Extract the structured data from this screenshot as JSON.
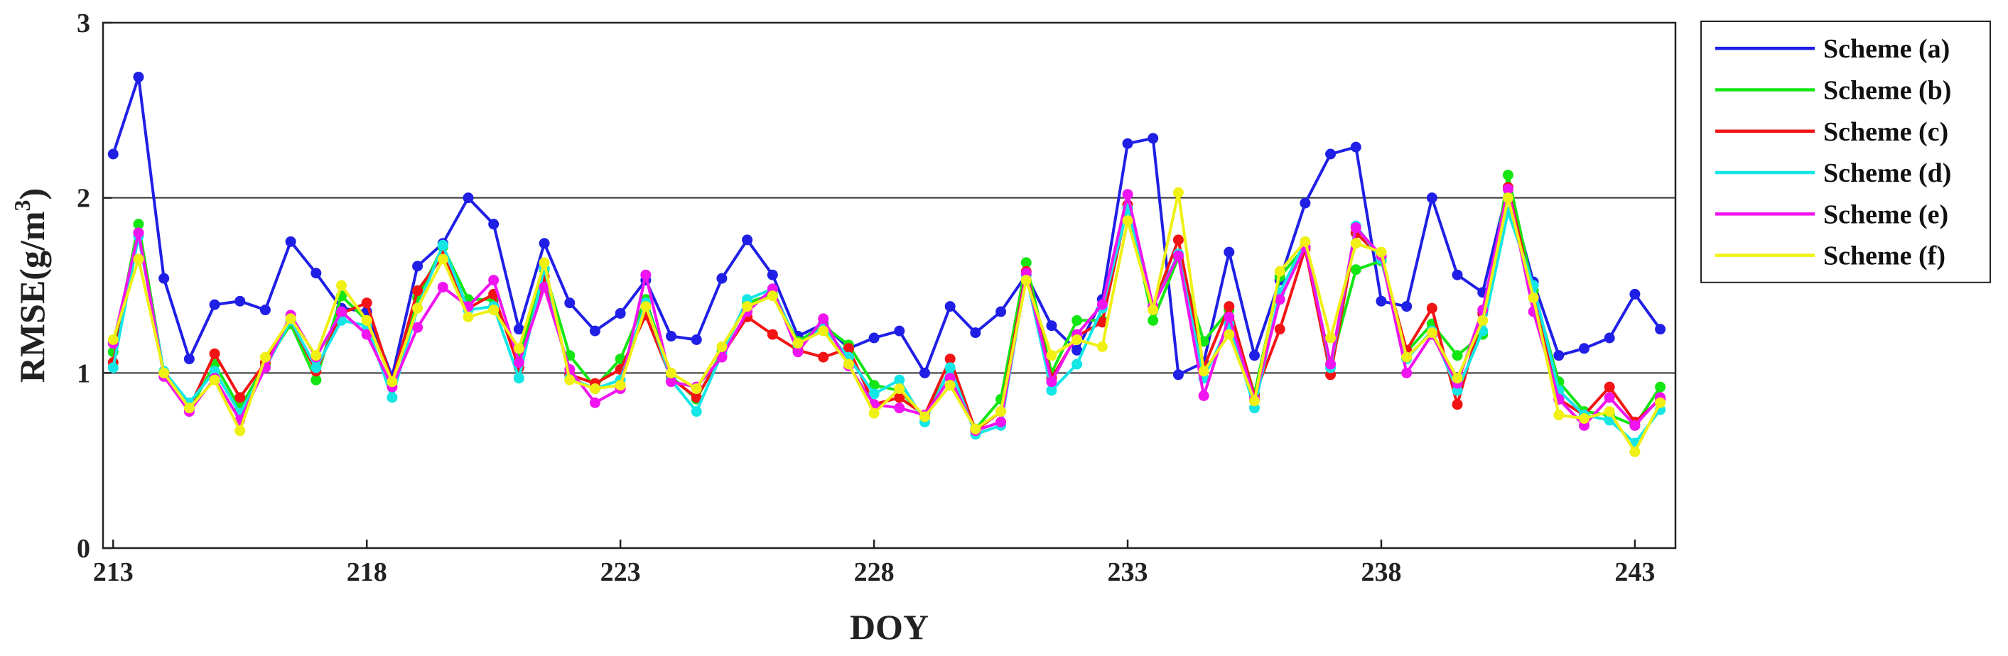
{
  "chart_data": {
    "type": "line",
    "xlabel": "DOY",
    "ylabel_prefix": "RMSE(g/m",
    "ylabel_sup": "3",
    "ylabel_suffix": ")",
    "xlim": [
      212.8,
      243.8
    ],
    "ylim": [
      0,
      3
    ],
    "xticks": [
      213,
      218,
      223,
      228,
      233,
      238,
      243
    ],
    "xtick_labels": [
      "213",
      "218",
      "223",
      "228",
      "233",
      "238",
      "243"
    ],
    "yticks": [
      0,
      1,
      2,
      3
    ],
    "ytick_labels": [
      "0",
      "1",
      "2",
      "3"
    ],
    "ygrid": [
      1,
      2
    ],
    "legend_position": "top-right, outside plot",
    "x": [
      213.0,
      213.5,
      214.0,
      214.5,
      215.0,
      215.5,
      216.0,
      216.5,
      217.0,
      217.5,
      218.0,
      218.5,
      219.0,
      219.5,
      220.0,
      220.5,
      221.0,
      221.5,
      222.0,
      222.5,
      223.0,
      223.5,
      224.0,
      224.5,
      225.0,
      225.5,
      226.0,
      226.5,
      227.0,
      227.5,
      228.0,
      228.5,
      229.0,
      229.5,
      230.0,
      230.5,
      231.0,
      231.5,
      232.0,
      232.5,
      233.0,
      233.5,
      234.0,
      234.5,
      235.0,
      235.5,
      236.0,
      236.5,
      237.0,
      237.5,
      238.0,
      238.5,
      239.0,
      239.5,
      240.0,
      240.5,
      241.0,
      241.5,
      242.0,
      242.5,
      243.0,
      243.5
    ],
    "series": [
      {
        "name": "Scheme (a)",
        "color": "#1f1fe6",
        "values": [
          2.25,
          2.69,
          1.54,
          1.08,
          1.39,
          1.41,
          1.36,
          1.75,
          1.57,
          1.37,
          1.35,
          0.98,
          1.61,
          1.74,
          2.0,
          1.85,
          1.25,
          1.74,
          1.4,
          1.24,
          1.34,
          1.53,
          1.21,
          1.19,
          1.54,
          1.76,
          1.56,
          1.21,
          1.28,
          1.14,
          1.2,
          1.24,
          1.0,
          1.38,
          1.23,
          1.35,
          1.56,
          1.27,
          1.13,
          1.42,
          2.31,
          2.34,
          0.99,
          1.06,
          1.69,
          1.1,
          1.53,
          1.97,
          2.25,
          2.29,
          1.41,
          1.38,
          2.0,
          1.56,
          1.46,
          2.06,
          1.52,
          1.1,
          1.14,
          1.2,
          1.45,
          1.25
        ]
      },
      {
        "name": "Scheme (b)",
        "color": "#14e614",
        "values": [
          1.12,
          1.85,
          1.0,
          0.79,
          1.05,
          0.8,
          1.05,
          1.28,
          0.96,
          1.44,
          1.3,
          0.95,
          1.43,
          1.72,
          1.42,
          1.42,
          1.08,
          1.59,
          1.1,
          0.92,
          1.08,
          1.42,
          0.98,
          0.85,
          1.12,
          1.4,
          1.45,
          1.18,
          1.27,
          1.16,
          0.93,
          0.9,
          0.75,
          1.02,
          0.68,
          0.85,
          1.63,
          1.0,
          1.3,
          1.3,
          1.96,
          1.3,
          1.66,
          1.18,
          1.36,
          0.88,
          1.55,
          1.72,
          1.05,
          1.59,
          1.64,
          1.12,
          1.28,
          1.1,
          1.22,
          2.13,
          1.47,
          0.95,
          0.78,
          0.76,
          0.7,
          0.92
        ]
      },
      {
        "name": "Scheme (c)",
        "color": "#f21414",
        "values": [
          1.06,
          1.8,
          1.0,
          0.8,
          1.11,
          0.86,
          1.06,
          1.3,
          1.01,
          1.34,
          1.4,
          0.95,
          1.47,
          1.67,
          1.37,
          1.45,
          1.03,
          1.55,
          0.99,
          0.94,
          1.02,
          1.33,
          0.97,
          0.86,
          1.1,
          1.32,
          1.22,
          1.13,
          1.09,
          1.14,
          0.82,
          0.86,
          0.76,
          1.08,
          0.67,
          0.78,
          1.58,
          0.97,
          1.21,
          1.29,
          1.96,
          1.38,
          1.76,
          1.03,
          1.38,
          0.87,
          1.25,
          1.71,
          0.99,
          1.8,
          1.66,
          1.13,
          1.37,
          0.82,
          1.34,
          2.06,
          1.43,
          0.85,
          0.76,
          0.92,
          0.72,
          0.85
        ]
      },
      {
        "name": "Scheme (d)",
        "color": "#14e6e6",
        "values": [
          1.03,
          1.78,
          1.01,
          0.83,
          1.01,
          0.77,
          1.03,
          1.3,
          1.03,
          1.3,
          1.27,
          0.86,
          1.37,
          1.73,
          1.36,
          1.38,
          0.97,
          1.6,
          0.97,
          0.91,
          0.96,
          1.4,
          0.96,
          0.78,
          1.11,
          1.42,
          1.48,
          1.16,
          1.26,
          1.09,
          0.88,
          0.96,
          0.72,
          1.03,
          0.65,
          0.7,
          1.56,
          0.9,
          1.05,
          1.37,
          1.94,
          1.38,
          1.68,
          0.97,
          1.28,
          0.8,
          1.46,
          1.75,
          1.03,
          1.84,
          1.65,
          1.08,
          1.24,
          0.9,
          1.24,
          1.92,
          1.5,
          0.9,
          0.76,
          0.73,
          0.6,
          0.79
        ]
      },
      {
        "name": "Scheme (e)",
        "color": "#f014f0",
        "values": [
          1.17,
          1.8,
          0.98,
          0.78,
          0.97,
          0.73,
          1.03,
          1.33,
          1.09,
          1.35,
          1.22,
          0.92,
          1.26,
          1.49,
          1.38,
          1.53,
          1.06,
          1.49,
          1.02,
          0.83,
          0.91,
          1.56,
          0.95,
          0.92,
          1.09,
          1.35,
          1.48,
          1.12,
          1.31,
          1.04,
          0.82,
          0.8,
          0.76,
          0.97,
          0.67,
          0.72,
          1.57,
          0.95,
          1.22,
          1.39,
          2.02,
          1.38,
          1.67,
          0.87,
          1.32,
          0.85,
          1.42,
          1.72,
          1.05,
          1.83,
          1.67,
          1.0,
          1.22,
          0.94,
          1.36,
          2.05,
          1.35,
          0.85,
          0.7,
          0.86,
          0.7,
          0.86
        ]
      },
      {
        "name": "Scheme (f)",
        "color": "#f0f014",
        "values": [
          1.19,
          1.65,
          1.0,
          0.8,
          0.96,
          0.67,
          1.09,
          1.31,
          1.1,
          1.5,
          1.3,
          0.95,
          1.37,
          1.65,
          1.32,
          1.36,
          1.14,
          1.63,
          0.96,
          0.91,
          0.93,
          1.38,
          1.0,
          0.91,
          1.15,
          1.38,
          1.44,
          1.17,
          1.24,
          1.05,
          0.77,
          0.91,
          0.75,
          0.93,
          0.68,
          0.78,
          1.53,
          1.1,
          1.19,
          1.15,
          1.87,
          1.36,
          2.03,
          1.01,
          1.22,
          0.84,
          1.58,
          1.75,
          1.2,
          1.74,
          1.69,
          1.09,
          1.23,
          0.97,
          1.3,
          2.0,
          1.43,
          0.76,
          0.74,
          0.78,
          0.55,
          0.83
        ]
      }
    ]
  }
}
